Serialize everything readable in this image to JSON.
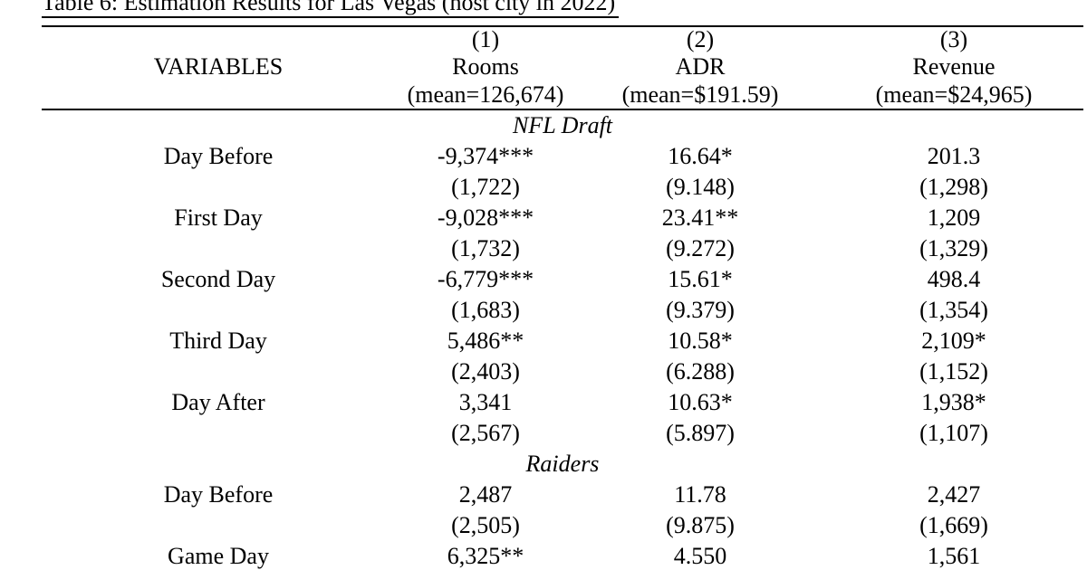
{
  "colors": {
    "text": "#000000",
    "background": "#ffffff"
  },
  "page": {
    "title": "Table 6: Estimation Results for Las Vegas (host city in 2022)"
  },
  "table": {
    "header": {
      "variables_label": "VARIABLES",
      "columns": [
        {
          "number": "(1)",
          "name": "Rooms",
          "mean": "(mean=126,674)"
        },
        {
          "number": "(2)",
          "name": "ADR",
          "mean": "(mean=$191.59)"
        },
        {
          "number": "(3)",
          "name": "Revenue",
          "mean": "(mean=$24,965)"
        }
      ]
    },
    "sections": [
      {
        "name": "NFL Draft",
        "rows": [
          {
            "label": "Day Before",
            "coef": [
              "-9,374***",
              "16.64*",
              "201.3"
            ],
            "se": [
              "(1,722)",
              "(9.148)",
              "(1,298)"
            ]
          },
          {
            "label": "First Day",
            "coef": [
              "-9,028***",
              "23.41**",
              "1,209"
            ],
            "se": [
              "(1,732)",
              "(9.272)",
              "(1,329)"
            ]
          },
          {
            "label": "Second Day",
            "coef": [
              "-6,779***",
              "15.61*",
              "498.4"
            ],
            "se": [
              "(1,683)",
              "(9.379)",
              "(1,354)"
            ]
          },
          {
            "label": "Third Day",
            "coef": [
              "5,486**",
              "10.58*",
              "2,109*"
            ],
            "se": [
              "(2,403)",
              "(6.288)",
              "(1,152)"
            ]
          },
          {
            "label": "Day After",
            "coef": [
              "3,341",
              "10.63*",
              "1,938*"
            ],
            "se": [
              "(2,567)",
              "(5.897)",
              "(1,107)"
            ]
          }
        ]
      },
      {
        "name": "Raiders",
        "rows": [
          {
            "label": "Day Before",
            "coef": [
              "2,487",
              "11.78",
              "2,427"
            ],
            "se": [
              "(2,505)",
              "(9.875)",
              "(1,669)"
            ]
          },
          {
            "label": "Game Day",
            "coef": [
              "6,325**",
              "4.550",
              "1,561"
            ],
            "se": null
          }
        ]
      }
    ]
  }
}
